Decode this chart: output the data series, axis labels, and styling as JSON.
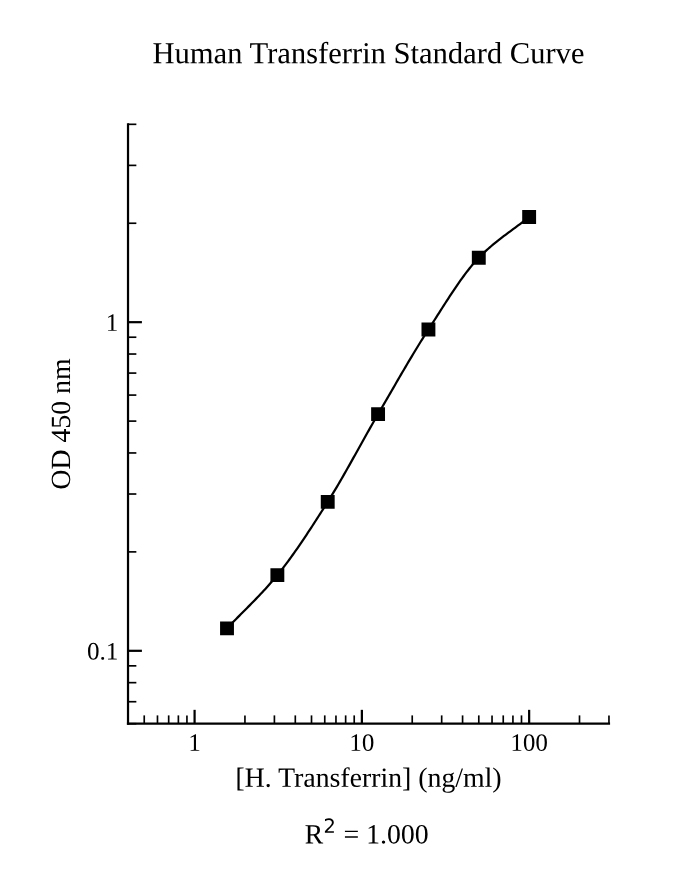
{
  "chart_data": {
    "type": "line",
    "title": "Human Transferrin Standard Curve",
    "xlabel": "[H. Transferrin] (ng/ml)",
    "ylabel": "OD 450 nm",
    "annotations": [
      "R$^{2}$ = 1.000"
    ],
    "x": [
      1.5625,
      3.125,
      6.25,
      12.5,
      25,
      50,
      100
    ],
    "series": [
      {
        "color": "#000000",
        "values": [
          0.117,
          0.17,
          0.284,
          0.525,
          0.95,
          1.57,
          2.09
        ]
      }
    ],
    "log": "xy",
    "xlim": [
      0.4,
      300
    ],
    "ylim": [
      0.06,
      4
    ],
    "xticks": [
      1,
      10,
      100
    ],
    "yticks": [
      0.1,
      1
    ],
    "marker": "square",
    "line_style": "solid",
    "grid": false,
    "legend": false
  }
}
